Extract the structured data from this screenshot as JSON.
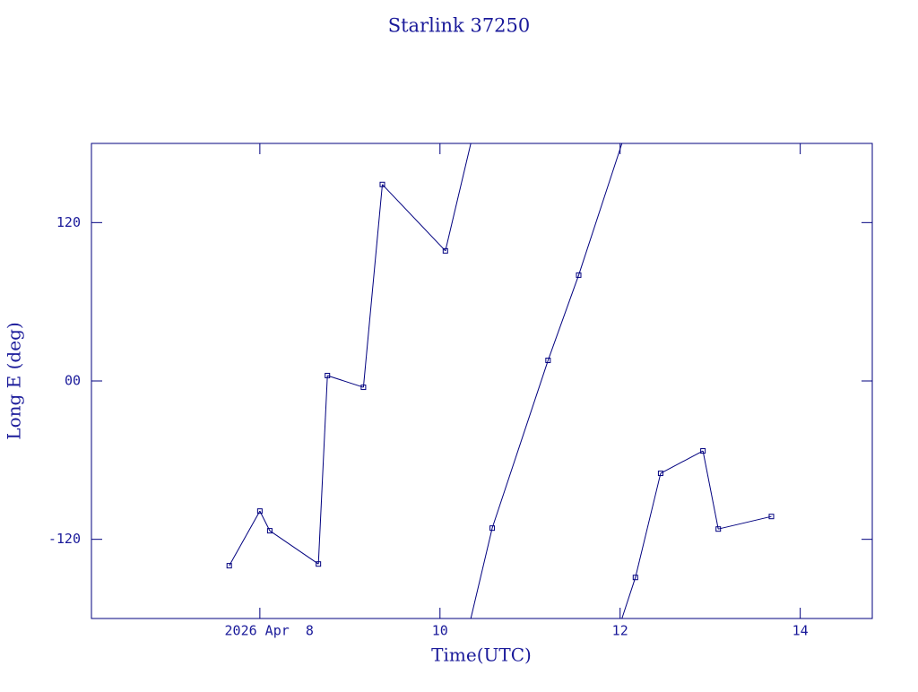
{
  "chart_data": {
    "type": "line",
    "title": "Starlink 37250",
    "x_label": "Time(UTC)",
    "y_label": "Long E (deg)",
    "x": [
      7.66,
      8.0,
      8.11,
      8.65,
      8.75,
      9.15,
      9.36,
      10.06,
      10.58,
      11.2,
      11.54,
      12.17,
      12.45,
      12.92,
      13.09,
      13.68
    ],
    "series": [
      {
        "color": "#00007f",
        "values": [
          -140,
          -98.6,
          -113.5,
          -138.7,
          4.1,
          -4.8,
          148.9,
          98.6,
          -111.5,
          15.6,
          80.2,
          -148.9,
          -70,
          -53,
          -112.2,
          -102.7
        ]
      }
    ],
    "xlim": [
      6.13,
      14.8
    ],
    "xticks": [
      {
        "value": 8,
        "label": "2026 Apr  8"
      },
      10,
      12,
      14
    ],
    "ylim": [
      -180,
      180
    ],
    "yticks": [
      -120,
      {
        "value": 0,
        "label": "00"
      },
      120
    ],
    "wrap": true,
    "markers": true
  }
}
